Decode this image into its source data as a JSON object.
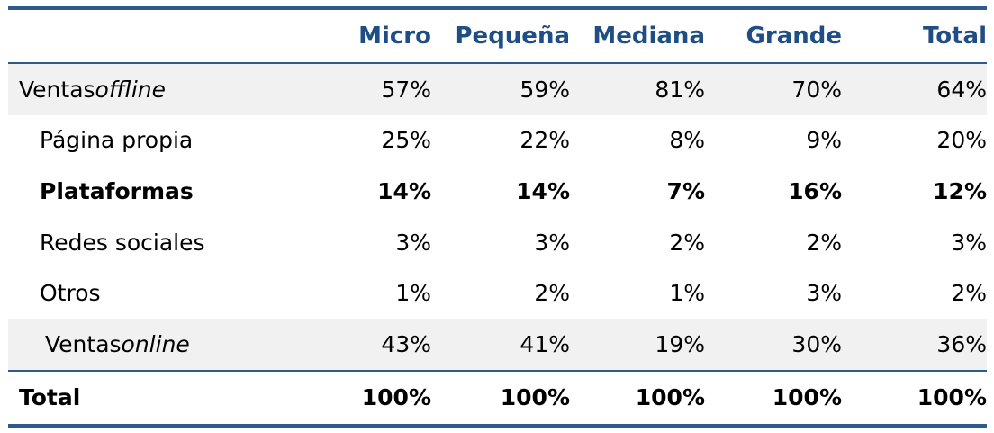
{
  "table": {
    "columns": [
      "Micro",
      "Pequeña",
      "Mediana",
      "Grande",
      "Total"
    ],
    "rows": [
      {
        "label": "Ventas ",
        "label_italic": "offline",
        "values": [
          "57%",
          "59%",
          "81%",
          "70%",
          "64%"
        ]
      },
      {
        "label": "Página propia",
        "values": [
          "25%",
          "22%",
          "8%",
          "9%",
          "20%"
        ]
      },
      {
        "label": "Plataformas",
        "values": [
          "14%",
          "14%",
          "7%",
          "16%",
          "12%"
        ]
      },
      {
        "label": "Redes sociales",
        "values": [
          "3%",
          "3%",
          "2%",
          "2%",
          "3%"
        ]
      },
      {
        "label": "Otros",
        "values": [
          "1%",
          "2%",
          "1%",
          "3%",
          "2%"
        ]
      },
      {
        "label": "Ventas ",
        "label_italic": "online",
        "values": [
          "43%",
          "41%",
          "19%",
          "30%",
          "36%"
        ]
      },
      {
        "label": "Total",
        "values": [
          "100%",
          "100%",
          "100%",
          "100%",
          "100%"
        ]
      }
    ]
  },
  "colors": {
    "header_text": "#1f4e85",
    "rule": "#2e5a8c",
    "shaded_row": "#f1f1f1"
  }
}
